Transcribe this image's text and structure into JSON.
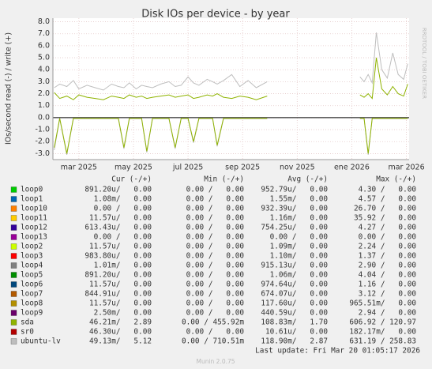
{
  "chart_data": {
    "type": "line",
    "title": "Disk IOs per device - by year",
    "y_label": "IOs/second read (-) / write (+)",
    "side_label": "RRDTOOL / TOBI OETIKER",
    "footer": "Munin 2.0.75",
    "last_update": "Last update: Fri Mar 20 01:05:17 2026",
    "grid": true,
    "xlim": [
      1.05,
      14.1
    ],
    "xticks": [
      {
        "value": 2,
        "label": "mar 2025"
      },
      {
        "value": 4,
        "label": "may 2025"
      },
      {
        "value": 6,
        "label": "jul 2025"
      },
      {
        "value": 8,
        "label": "sep 2025"
      },
      {
        "value": 10,
        "label": "nov 2025"
      },
      {
        "value": 12,
        "label": "ene 2026"
      },
      {
        "value": 14,
        "label": "mar 2026"
      }
    ],
    "ylim": [
      -3.5,
      8.3
    ],
    "yticks": [
      {
        "value": 8,
        "label": "8.0"
      },
      {
        "value": 7,
        "label": "7.0"
      },
      {
        "value": 6,
        "label": "6.0"
      },
      {
        "value": 5,
        "label": "5.0"
      },
      {
        "value": 4,
        "label": "4.0"
      },
      {
        "value": 3,
        "label": "3.0"
      },
      {
        "value": 2,
        "label": "2.0"
      },
      {
        "value": 1,
        "label": "1.0"
      },
      {
        "value": 0,
        "label": "0.0"
      },
      {
        "value": -1,
        "label": "-1.0"
      },
      {
        "value": -2,
        "label": "-2.0"
      },
      {
        "value": -3,
        "label": "-3.0"
      }
    ],
    "x": [
      1.1,
      1.3,
      1.56,
      1.8,
      2.0,
      2.3,
      2.6,
      2.9,
      3.2,
      3.45,
      3.65,
      3.85,
      4.1,
      4.3,
      4.49,
      4.7,
      5.0,
      5.3,
      5.53,
      5.75,
      6.0,
      6.2,
      6.4,
      6.7,
      6.9,
      7.07,
      7.3,
      7.6,
      7.9,
      8.2,
      8.5,
      8.9,
      10.5,
      12.3,
      12.45,
      12.6,
      12.75,
      12.9,
      13.1,
      13.3,
      13.5,
      13.7,
      13.9,
      14.05
    ],
    "series": [
      {
        "color": "#bebebe",
        "values": [
          2.5,
          2.8,
          2.6,
          3.1,
          2.4,
          2.7,
          2.5,
          2.3,
          2.8,
          2.6,
          2.5,
          2.9,
          2.4,
          2.7,
          2.6,
          2.5,
          2.8,
          3.0,
          2.6,
          2.7,
          3.4,
          2.9,
          2.7,
          3.2,
          3.0,
          2.8,
          3.1,
          3.6,
          2.6,
          3.1,
          2.5,
          3.0,
          null,
          3.4,
          3.0,
          3.6,
          2.9,
          7.1,
          4.0,
          3.3,
          5.4,
          3.6,
          3.2,
          4.5
        ]
      },
      {
        "color": "#bebebe",
        "values": [
          -2.7,
          -0.08,
          -3.1,
          -0.08,
          -0.08,
          -0.08,
          -0.08,
          -0.08,
          -0.08,
          -0.08,
          -2.6,
          -0.08,
          -0.08,
          -0.08,
          -2.9,
          -0.08,
          -0.08,
          -0.08,
          -2.6,
          -0.08,
          -0.08,
          -2.1,
          -0.08,
          -0.08,
          -0.08,
          -2.4,
          -0.08,
          -0.08,
          -0.08,
          -0.08,
          -0.08,
          -0.08,
          null,
          -0.08,
          -0.08,
          -3.1,
          -0.08,
          -0.08,
          -0.08,
          -0.08,
          -0.08,
          -0.08,
          -0.08,
          -0.08
        ]
      },
      {
        "color": "#8fb300",
        "values": [
          2.1,
          1.6,
          1.8,
          1.5,
          1.9,
          1.7,
          1.6,
          1.5,
          1.8,
          1.7,
          1.6,
          1.9,
          1.7,
          1.8,
          1.6,
          1.7,
          1.8,
          1.9,
          1.7,
          1.8,
          1.9,
          1.6,
          1.7,
          1.9,
          1.8,
          2.0,
          1.7,
          1.6,
          1.8,
          1.7,
          1.5,
          1.8,
          null,
          1.9,
          1.7,
          2.0,
          1.6,
          5.0,
          2.4,
          1.9,
          2.6,
          2.0,
          1.8,
          2.8
        ]
      },
      {
        "color": "#8fb300",
        "values": [
          -2.5,
          -0.05,
          -3.0,
          -0.05,
          -0.05,
          -0.05,
          -0.05,
          -0.05,
          -0.05,
          -0.05,
          -2.5,
          -0.05,
          -0.05,
          -0.05,
          -2.8,
          -0.05,
          -0.05,
          -0.05,
          -2.5,
          -0.05,
          -0.05,
          -2.0,
          -0.05,
          -0.05,
          -0.05,
          -2.3,
          -0.05,
          -0.05,
          -0.05,
          -0.05,
          -0.05,
          -0.05,
          null,
          -0.05,
          -0.05,
          -3.0,
          -0.05,
          -0.05,
          -0.05,
          -0.05,
          -0.05,
          -0.05,
          -0.05,
          -0.05
        ]
      }
    ],
    "legend": {
      "header": [
        "Cur (-/+)",
        "Min (-/+)",
        "Avg (-/+)",
        "Max (-/+)"
      ],
      "rows": [
        {
          "name": "loop0",
          "color": "#00cc00",
          "cells": [
            "891.20u/   0.00",
            "0.00 /   0.00",
            "952.79u/   0.00",
            "4.30 /   0.00"
          ]
        },
        {
          "name": "loop1",
          "color": "#0066b3",
          "cells": [
            "1.08m/   0.00",
            "0.00 /   0.00",
            "1.55m/   0.00",
            "4.57 /   0.00"
          ]
        },
        {
          "name": "loop10",
          "color": "#ff8000",
          "cells": [
            "0.00 /   0.00",
            "0.00 /   0.00",
            "932.39u/   0.00",
            "26.70 /   0.00"
          ]
        },
        {
          "name": "loop11",
          "color": "#ffcc00",
          "cells": [
            "11.57u/   0.00",
            "0.00 /   0.00",
            "1.16m/   0.00",
            "35.92 /   0.00"
          ]
        },
        {
          "name": "loop12",
          "color": "#330099",
          "cells": [
            "613.43u/   0.00",
            "0.00 /   0.00",
            "754.25u/   0.00",
            "4.27 /   0.00"
          ]
        },
        {
          "name": "loop13",
          "color": "#990099",
          "cells": [
            "0.00 /   0.00",
            "0.00 /   0.00",
            "0.00 /   0.00",
            "0.00 /   0.00"
          ]
        },
        {
          "name": "loop2",
          "color": "#ccff00",
          "cells": [
            "11.57u/   0.00",
            "0.00 /   0.00",
            "1.09m/   0.00",
            "2.24 /   0.00"
          ]
        },
        {
          "name": "loop3",
          "color": "#ff0000",
          "cells": [
            "983.80u/   0.00",
            "0.00 /   0.00",
            "1.10m/   0.00",
            "1.37 /   0.00"
          ]
        },
        {
          "name": "loop4",
          "color": "#808080",
          "cells": [
            "1.01m/   0.00",
            "0.00 /   0.00",
            "915.13u/   0.00",
            "2.90 /   0.00"
          ]
        },
        {
          "name": "loop5",
          "color": "#008f00",
          "cells": [
            "891.20u/   0.00",
            "0.00 /   0.00",
            "1.06m/   0.00",
            "4.04 /   0.00"
          ]
        },
        {
          "name": "loop6",
          "color": "#00487d",
          "cells": [
            "11.57u/   0.00",
            "0.00 /   0.00",
            "974.64u/   0.00",
            "1.16 /   0.00"
          ]
        },
        {
          "name": "loop7",
          "color": "#b35a00",
          "cells": [
            "844.91u/   0.00",
            "0.00 /   0.00",
            "674.07u/   0.00",
            "3.12 /   0.00"
          ]
        },
        {
          "name": "loop8",
          "color": "#b38f00",
          "cells": [
            "11.57u/   0.00",
            "0.00 /   0.00",
            "117.60u/   0.00",
            "965.51m/   0.00"
          ]
        },
        {
          "name": "loop9",
          "color": "#6b006b",
          "cells": [
            "2.50m/   0.00",
            "0.00 /   0.00",
            "440.59u/   0.00",
            "2.94 /   0.00"
          ]
        },
        {
          "name": "sda",
          "color": "#8fb300",
          "cells": [
            "46.21m/   2.89",
            "0.00 / 455.92m",
            "108.83m/   1.70",
            "606.92 / 120.97"
          ]
        },
        {
          "name": "sr0",
          "color": "#b30000",
          "cells": [
            "46.30u/   0.00",
            "0.00 /   0.00",
            "10.61u/   0.00",
            "182.17m/   0.00"
          ]
        },
        {
          "name": "ubuntu-lv",
          "color": "#bebebe",
          "cells": [
            "49.13m/   5.12",
            "0.00 / 710.51m",
            "118.90m/   2.87",
            "631.19 / 258.83"
          ]
        }
      ]
    }
  }
}
